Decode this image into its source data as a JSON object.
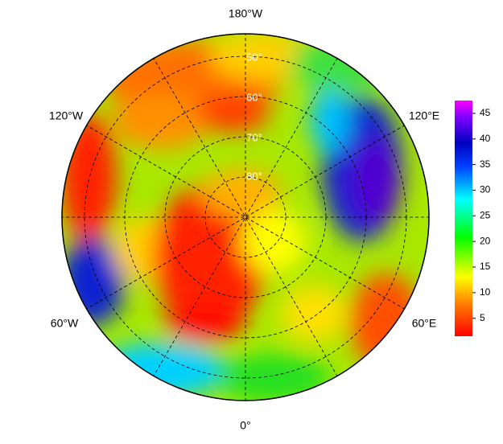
{
  "map": {
    "longitude_labels": [
      "180°W",
      "120°W",
      "120°E",
      "60°W",
      "60°E",
      "0°"
    ],
    "latitude_labels": [
      "50°",
      "60°",
      "70°",
      "80°"
    ],
    "colorbar": {
      "range": [
        1.5,
        47.5
      ],
      "ticks": [
        5,
        10,
        15,
        20,
        25,
        30,
        35,
        40,
        45
      ]
    }
  }
}
